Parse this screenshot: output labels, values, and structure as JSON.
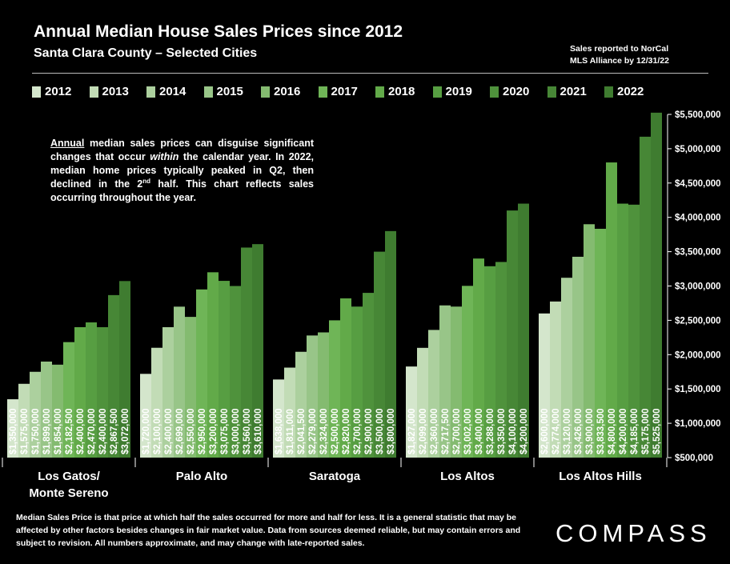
{
  "header": {
    "title": "Annual Median House Sales Prices since 2012",
    "subtitle": "Santa Clara County – Selected Cities",
    "note_line1": "Sales reported to NorCal",
    "note_line2": "MLS Alliance by 12/31/22"
  },
  "annotation": {
    "p1": "Annual",
    "p2": " median sales prices can disguise significant changes that occur ",
    "p3": "within",
    "p4": " the calendar year. In 2022, median home prices typically peaked in Q2, then declined in the 2",
    "p5": "nd",
    "p6": " half. This chart reflects sales occurring throughout the year."
  },
  "footer": {
    "text": "Median Sales Price is that price at which half the sales occurred for more and half for less. It is a general statistic that may be affected by other factors besides changes in fair market value. Data from sources deemed reliable, but may contain errors and subject to revision.  All numbers approximate, and may change with late-reported sales."
  },
  "logo": {
    "text": "COMPASS"
  },
  "colors": [
    "#d4e6cc",
    "#c2dcb6",
    "#acd09e",
    "#98c588",
    "#84bb70",
    "#6fb557",
    "#62aa49",
    "#579e42",
    "#4f923c",
    "#478736",
    "#3f7c30"
  ],
  "chart_data": {
    "type": "bar",
    "title": "Annual Median House Sales Prices since 2012",
    "subtitle": "Santa Clara County – Selected Cities",
    "xlabel": "",
    "ylabel": "",
    "ylim": [
      500000,
      5500000
    ],
    "yticks": [
      "$500,000",
      "$1,000,000",
      "$1,500,000",
      "$2,000,000",
      "$2,500,000",
      "$3,000,000",
      "$3,500,000",
      "$4,000,000",
      "$4,500,000",
      "$5,000,000",
      "$5,500,000"
    ],
    "legend": [
      "2012",
      "2013",
      "2014",
      "2015",
      "2016",
      "2017",
      "2018",
      "2019",
      "2020",
      "2021",
      "2022"
    ],
    "legend_position": "top",
    "groups": [
      {
        "label_line1": "Los Gatos/",
        "label_line2": "Monte Sereno",
        "values": [
          1350000,
          1575000,
          1750000,
          1899000,
          1854000,
          2182500,
          2400000,
          2470000,
          2400000,
          2867500,
          3072000
        ],
        "labels": [
          "$1,350,000",
          "$1,575,000",
          "$1,750,000",
          "$1,899,000",
          "$1,854,000",
          "$2,182,500",
          "$2,400,000",
          "$2,470,000",
          "$2,400,000",
          "$2,867,500",
          "$3,072,000"
        ]
      },
      {
        "label_line1": "Palo Alto",
        "label_line2": "",
        "values": [
          1720000,
          2100000,
          2400000,
          2699000,
          2550000,
          2950000,
          3200000,
          3075000,
          3000000,
          3560000,
          3610000
        ],
        "labels": [
          "$1,720,000",
          "$2,100,000",
          "$2,400,000",
          "$2,699,000",
          "$2,550,000",
          "$2,950,000",
          "$3,200,000",
          "$3,075,000",
          "$3,000,000",
          "$3,560,000",
          "$3,610,000"
        ]
      },
      {
        "label_line1": "Saratoga",
        "label_line2": "",
        "values": [
          1638000,
          1811000,
          2041500,
          2279000,
          2324000,
          2500000,
          2820000,
          2700000,
          2900000,
          3500000,
          3800000
        ],
        "labels": [
          "$1,638,000",
          "$1,811,000",
          "$2,041,500",
          "$2,279,000",
          "$2,324,000",
          "$2,500,000",
          "$2,820,000",
          "$2,700,000",
          "$2,900,000",
          "$3,500,000",
          "$3,800,000"
        ]
      },
      {
        "label_line1": "Los Altos",
        "label_line2": "",
        "values": [
          1827000,
          2099000,
          2360000,
          2717500,
          2700000,
          3002000,
          3400000,
          3288000,
          3350000,
          4100000,
          4200000
        ],
        "labels": [
          "$1,827,000",
          "$2,099,000",
          "$2,360,000",
          "$2,717,500",
          "$2,700,000",
          "$3,002,000",
          "$3,400,000",
          "$3,288,000",
          "$3,350,000",
          "$4,100,000",
          "$4,200,000"
        ]
      },
      {
        "label_line1": "Los Altos Hills",
        "label_line2": "",
        "values": [
          2600000,
          2774000,
          3120000,
          3426000,
          3900000,
          3833500,
          4800000,
          4200000,
          4185000,
          5175000,
          5525000
        ],
        "labels": [
          "$2,600,000",
          "$2,774,000",
          "$3,120,000",
          "$3,426,000",
          "$3,900,000",
          "$3,833,500",
          "$4,800,000",
          "$4,200,000",
          "$4,185,000",
          "$5,175,000",
          "$5,525,000"
        ]
      }
    ]
  }
}
